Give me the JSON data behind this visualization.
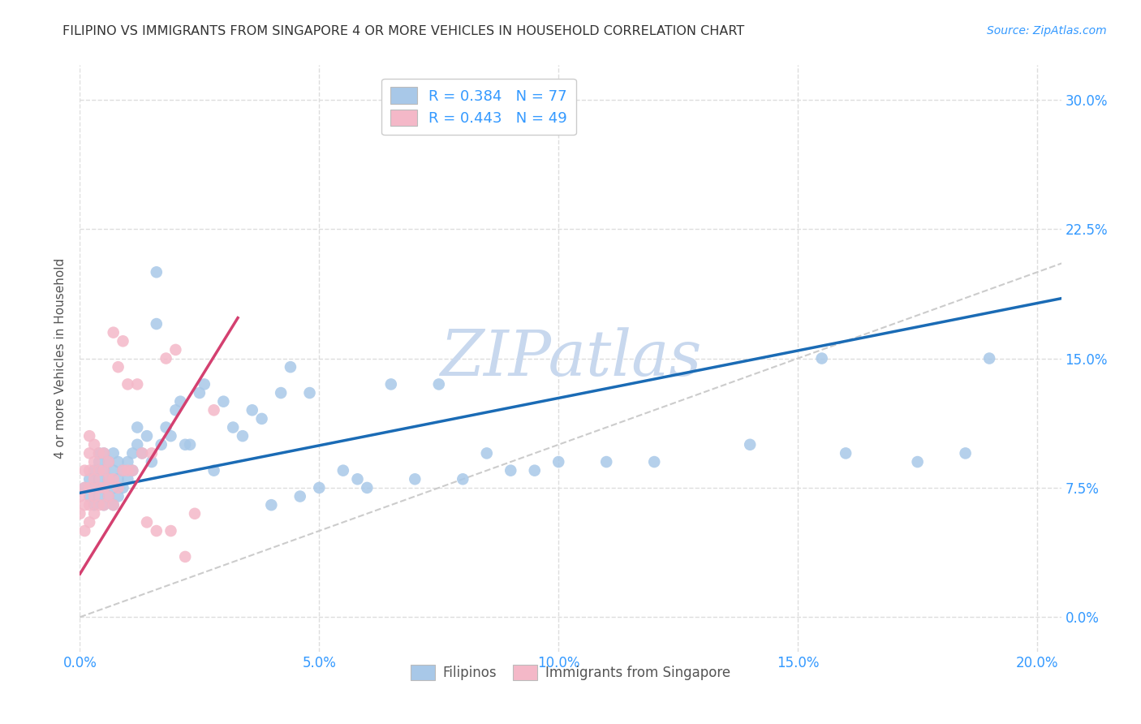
{
  "title": "FILIPINO VS IMMIGRANTS FROM SINGAPORE 4 OR MORE VEHICLES IN HOUSEHOLD CORRELATION CHART",
  "source": "Source: ZipAtlas.com",
  "ylabel": "4 or more Vehicles in Household",
  "xlabel_ticks": [
    "0.0%",
    "",
    "",
    "",
    "",
    "5.0%",
    "",
    "",
    "",
    "",
    "10.0%",
    "",
    "",
    "",
    "",
    "15.0%",
    "",
    "",
    "",
    "",
    "20.0%"
  ],
  "xlabel_vals": [
    0.0,
    0.01,
    0.02,
    0.03,
    0.04,
    0.05,
    0.06,
    0.07,
    0.08,
    0.09,
    0.1,
    0.11,
    0.12,
    0.13,
    0.14,
    0.15,
    0.16,
    0.17,
    0.18,
    0.19,
    0.2
  ],
  "xlabel_major_ticks": [
    0.0,
    0.05,
    0.1,
    0.15,
    0.2
  ],
  "xlabel_major_labels": [
    "0.0%",
    "5.0%",
    "10.0%",
    "15.0%",
    "20.0%"
  ],
  "ylabel_ticks": [
    "0.0%",
    "7.5%",
    "15.0%",
    "22.5%",
    "30.0%"
  ],
  "ylabel_vals": [
    0.0,
    0.075,
    0.15,
    0.225,
    0.3
  ],
  "xlim": [
    0.0,
    0.205
  ],
  "ylim": [
    -0.02,
    0.32
  ],
  "filipinos_R": 0.384,
  "filipinos_N": 77,
  "singapore_R": 0.443,
  "singapore_N": 49,
  "blue_scatter_color": "#a8c8e8",
  "pink_scatter_color": "#f4b8c8",
  "blue_line_color": "#1a6bb5",
  "pink_line_color": "#d44070",
  "diagonal_color": "#cccccc",
  "legend_R_color": "#3399ff",
  "watermark_color": "#c8d8ee",
  "background_color": "#ffffff",
  "grid_color": "#dddddd",
  "title_color": "#333333",
  "axis_label_color": "#555555",
  "right_tick_color": "#3399ff",
  "blue_line_intercept": 0.072,
  "blue_line_slope": 0.55,
  "pink_line_intercept": 0.025,
  "pink_line_slope": 4.5,
  "pink_line_xmax": 0.033,
  "filipinos_x": [
    0.001,
    0.002,
    0.002,
    0.003,
    0.003,
    0.003,
    0.004,
    0.004,
    0.004,
    0.004,
    0.005,
    0.005,
    0.005,
    0.005,
    0.006,
    0.006,
    0.006,
    0.007,
    0.007,
    0.007,
    0.007,
    0.008,
    0.008,
    0.008,
    0.009,
    0.009,
    0.01,
    0.01,
    0.011,
    0.011,
    0.012,
    0.012,
    0.013,
    0.014,
    0.015,
    0.016,
    0.016,
    0.017,
    0.018,
    0.019,
    0.02,
    0.021,
    0.022,
    0.023,
    0.025,
    0.026,
    0.028,
    0.03,
    0.032,
    0.034,
    0.036,
    0.038,
    0.04,
    0.042,
    0.044,
    0.046,
    0.048,
    0.05,
    0.055,
    0.058,
    0.06,
    0.065,
    0.07,
    0.075,
    0.08,
    0.085,
    0.09,
    0.095,
    0.1,
    0.11,
    0.12,
    0.14,
    0.155,
    0.16,
    0.175,
    0.185,
    0.19
  ],
  "filipinos_y": [
    0.075,
    0.07,
    0.08,
    0.065,
    0.075,
    0.085,
    0.07,
    0.08,
    0.09,
    0.095,
    0.065,
    0.075,
    0.085,
    0.095,
    0.07,
    0.08,
    0.09,
    0.065,
    0.075,
    0.085,
    0.095,
    0.07,
    0.08,
    0.09,
    0.075,
    0.085,
    0.08,
    0.09,
    0.085,
    0.095,
    0.1,
    0.11,
    0.095,
    0.105,
    0.09,
    0.17,
    0.2,
    0.1,
    0.11,
    0.105,
    0.12,
    0.125,
    0.1,
    0.1,
    0.13,
    0.135,
    0.085,
    0.125,
    0.11,
    0.105,
    0.12,
    0.115,
    0.065,
    0.13,
    0.145,
    0.07,
    0.13,
    0.075,
    0.085,
    0.08,
    0.075,
    0.135,
    0.08,
    0.135,
    0.08,
    0.095,
    0.085,
    0.085,
    0.09,
    0.09,
    0.09,
    0.1,
    0.15,
    0.095,
    0.09,
    0.095,
    0.15
  ],
  "singapore_x": [
    0.0,
    0.0,
    0.001,
    0.001,
    0.001,
    0.001,
    0.002,
    0.002,
    0.002,
    0.002,
    0.002,
    0.002,
    0.003,
    0.003,
    0.003,
    0.003,
    0.003,
    0.004,
    0.004,
    0.004,
    0.004,
    0.005,
    0.005,
    0.005,
    0.005,
    0.006,
    0.006,
    0.006,
    0.007,
    0.007,
    0.007,
    0.008,
    0.008,
    0.009,
    0.009,
    0.01,
    0.01,
    0.011,
    0.012,
    0.013,
    0.014,
    0.015,
    0.016,
    0.018,
    0.019,
    0.02,
    0.022,
    0.024,
    0.028
  ],
  "singapore_y": [
    0.06,
    0.07,
    0.05,
    0.065,
    0.075,
    0.085,
    0.055,
    0.065,
    0.075,
    0.085,
    0.095,
    0.105,
    0.06,
    0.07,
    0.08,
    0.09,
    0.1,
    0.065,
    0.075,
    0.085,
    0.095,
    0.065,
    0.075,
    0.085,
    0.095,
    0.07,
    0.08,
    0.09,
    0.065,
    0.08,
    0.165,
    0.075,
    0.145,
    0.085,
    0.16,
    0.085,
    0.135,
    0.085,
    0.135,
    0.095,
    0.055,
    0.095,
    0.05,
    0.15,
    0.05,
    0.155,
    0.035,
    0.06,
    0.12
  ]
}
